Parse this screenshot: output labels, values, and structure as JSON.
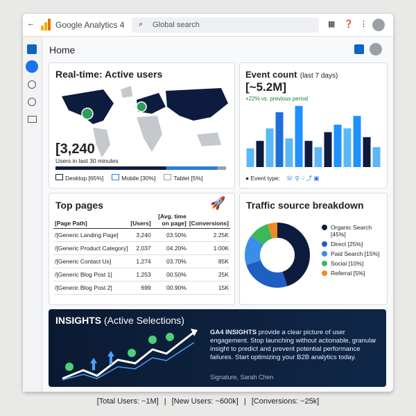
{
  "topbar": {
    "brand": "Google Analytics 4",
    "search": "Global search"
  },
  "header": {
    "title": "Home"
  },
  "realtime": {
    "title": "Real-time: Active users",
    "value": "[3,240",
    "caption": "Users in last 30 minutes",
    "devices": [
      {
        "label": "Desktop [65%]",
        "value": 65,
        "color": "#0d1b3e"
      },
      {
        "label": "Mobile [30%]",
        "value": 30,
        "color": "#2a7fd4"
      },
      {
        "label": "Tablet [5%]",
        "value": 5,
        "color": "#9aa0a6"
      }
    ]
  },
  "event_count": {
    "title": "Event count",
    "subtitle": "(last 7 days)",
    "value": "[~5.2M]",
    "change": "+22% vs. previous period",
    "legend": "Event type:",
    "ylim": [
      0,
      100
    ],
    "values": [
      30,
      42,
      62,
      88,
      46,
      98,
      42,
      32,
      56,
      68,
      62,
      82,
      48,
      32
    ],
    "colors": [
      "#5bb8f5",
      "#0d1b3e",
      "#5bb8f5",
      "#1e6fd9",
      "#5bb8f5",
      "#1e90ff",
      "#0d1b3e",
      "#5bb8f5",
      "#0d1b3e",
      "#1e90ff",
      "#5bb8f5",
      "#1e90ff",
      "#0d1b3e",
      "#5bb8f5"
    ]
  },
  "top_pages": {
    "title": "Top pages",
    "columns": [
      "[Page Path]",
      "[Users]",
      "[Avg. time on page]",
      "[Conversions]"
    ],
    "rows": [
      [
        "/[Generic Landing Page]",
        "3,240",
        "03.50%",
        "2.25K"
      ],
      [
        "/[Generic Product Category]",
        "2,037",
        "04.20%",
        "1.00K"
      ],
      [
        "/[Generic Contact Us]",
        "1,274",
        "03.70%",
        "85K"
      ],
      [
        "/[Generic Blog Post 1]",
        "1,253",
        "00.50%",
        "25K"
      ],
      [
        "/[Generic Blog Post 2]",
        "699",
        "00.90%",
        "15K"
      ]
    ]
  },
  "traffic": {
    "title": "Traffic source breakdown",
    "segments": [
      {
        "label": "Organic Search [45%]",
        "value": 45,
        "color": "#0d1b3e"
      },
      {
        "label": "Direct [25%]",
        "value": 25,
        "color": "#1f5fc4"
      },
      {
        "label": "Paid Search [15%]",
        "value": 15,
        "color": "#3b8ee8"
      },
      {
        "label": "Social [10%]",
        "value": 10,
        "color": "#3cb85a"
      },
      {
        "label": "Referral [5%]",
        "value": 5,
        "color": "#f08a24"
      }
    ]
  },
  "insights": {
    "title": "INSIGHTS",
    "subtitle": "(Active Selections)",
    "lead": "GA4 INSIGHTS",
    "text": "provide a clear picture of user engagement. Stop launching without actionable, granular insight to predict and prevent potential performance failures. Start optimizing your B2B analytics today.",
    "signature": "Signature, Sarah Chen"
  },
  "footer": [
    "[Total Users: ~1M]",
    "[New Users: ~600k]",
    "[Conversions: ~25k]"
  ]
}
